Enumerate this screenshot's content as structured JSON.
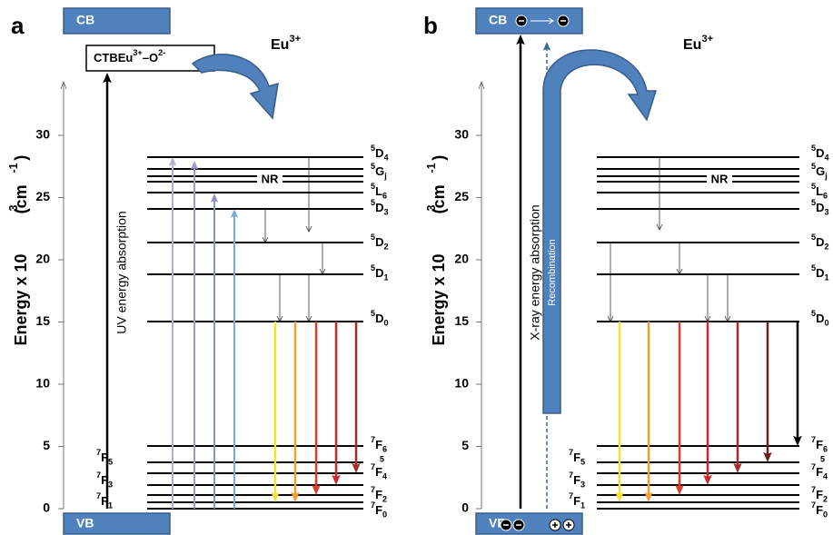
{
  "panels": [
    {
      "letter": "a",
      "cb": "CB",
      "vb": "VB",
      "ctb": {
        "label": "CTB",
        "ion": "Eu",
        "ion_charge": "3+",
        "ligand": "–O",
        "ligand_charge": "2-"
      },
      "ion": {
        "name": "Eu",
        "charge": "3+"
      },
      "absorption": "UV energy absorption",
      "nr": "NR",
      "right_fragment": "5"
    },
    {
      "letter": "b",
      "cb": "CB",
      "vb": "VB",
      "ion": {
        "name": "Eu",
        "charge": "3+"
      },
      "absorption": "X-ray energy absorption",
      "nr": "NR",
      "right_fragment": "5",
      "recombination": "Recombination"
    }
  ],
  "axis_label": {
    "text": "Energy x 10",
    "exp": "3",
    "unit": " (cm",
    "unit_exp": "-1",
    "close": ")"
  },
  "yticks": [
    0,
    5,
    10,
    15,
    20,
    25,
    30
  ],
  "levels_right": [
    {
      "sup": "5",
      "term": "D",
      "sub": "4"
    },
    {
      "sup": "5",
      "term": "G",
      "sub": "j"
    },
    {
      "sup": "5",
      "term": "L",
      "sub": "6"
    },
    {
      "sup": "5",
      "term": "D",
      "sub": "3"
    },
    {
      "sup": "5",
      "term": "D",
      "sub": "2"
    },
    {
      "sup": "5",
      "term": "D",
      "sub": "1"
    },
    {
      "sup": "5",
      "term": "D",
      "sub": "0"
    },
    {
      "sup": "7",
      "term": "F",
      "sub": "6"
    },
    {
      "sup": "7",
      "term": "F",
      "sub": "4"
    },
    {
      "sup": "7",
      "term": "F",
      "sub": "2"
    },
    {
      "sup": "7",
      "term": "F",
      "sub": "0"
    }
  ],
  "levels_left": [
    {
      "sup": "7",
      "term": "F",
      "sub": "5"
    },
    {
      "sup": "7",
      "term": "F",
      "sub": "3"
    },
    {
      "sup": "7",
      "term": "F",
      "sub": "1"
    }
  ]
}
